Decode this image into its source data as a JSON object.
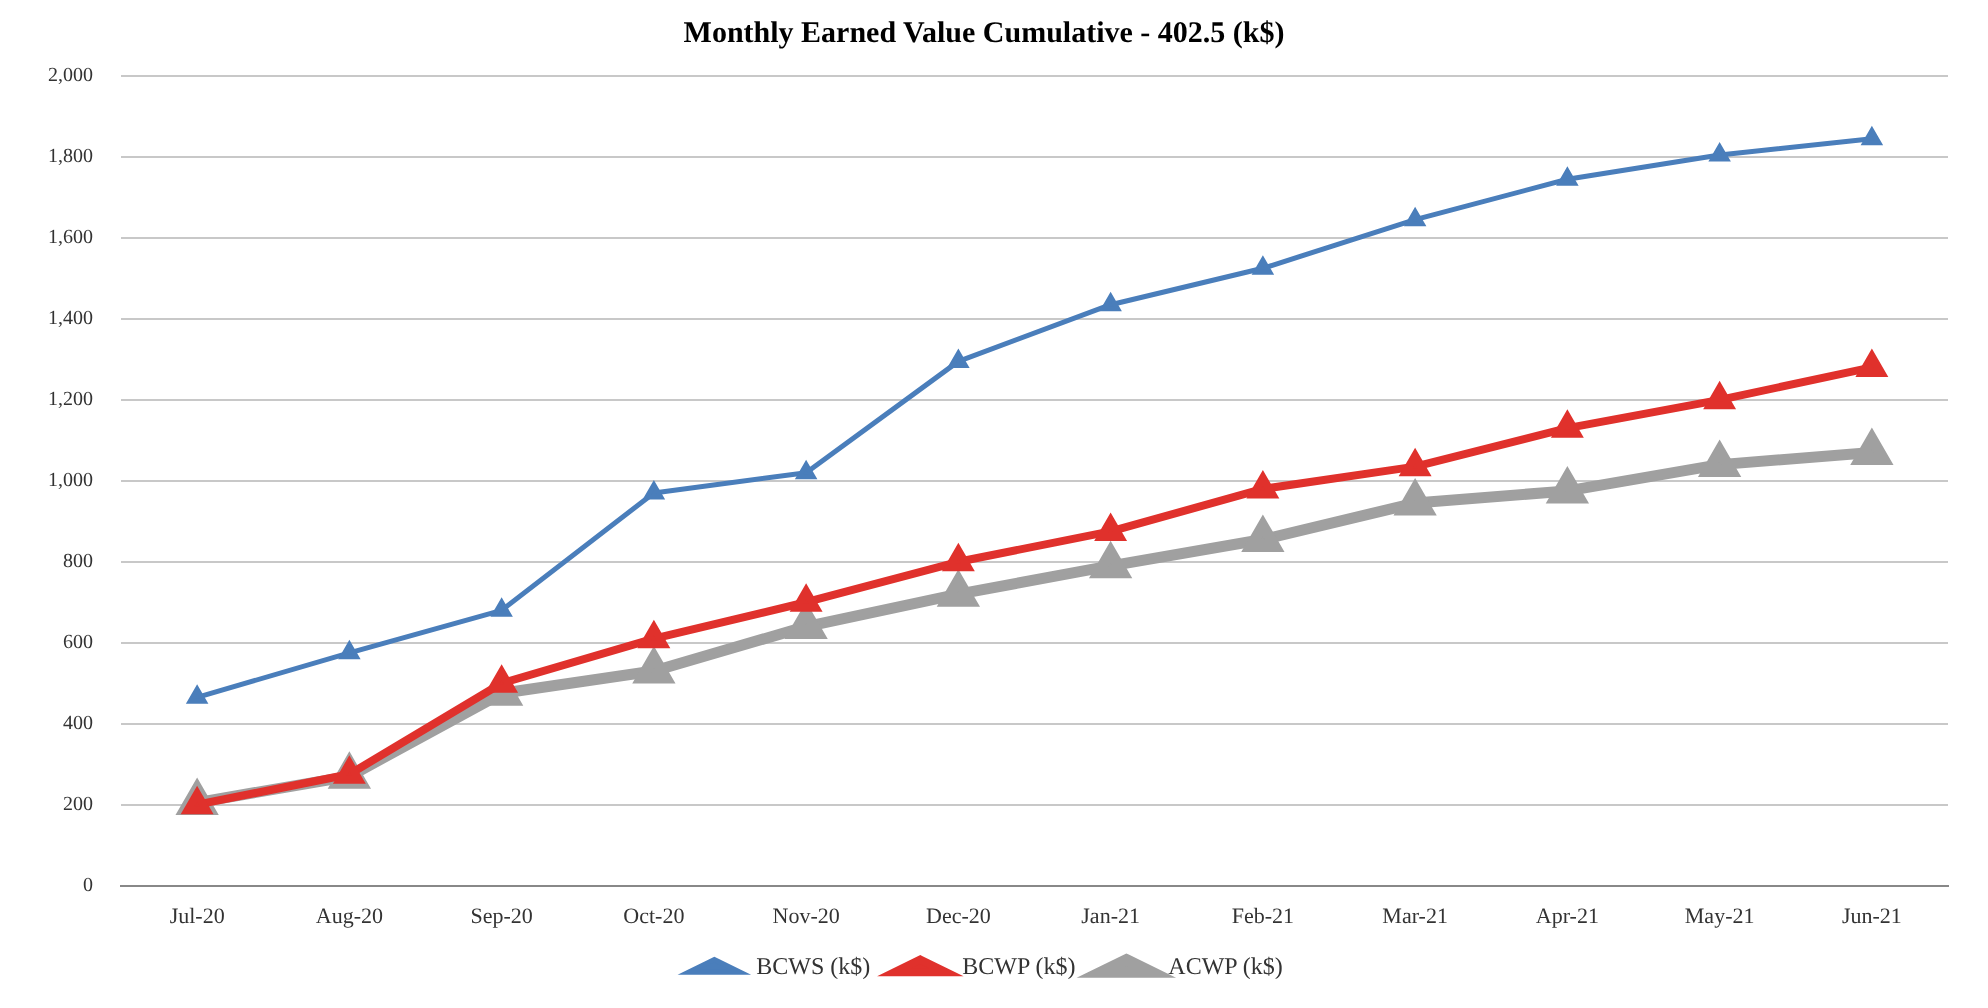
{
  "chart_data": {
    "type": "line",
    "title": "Monthly Earned Value Cumulative - 402.5 (k$)",
    "categories": [
      "Jul-20",
      "Aug-20",
      "Sep-20",
      "Oct-20",
      "Nov-20",
      "Dec-20",
      "Jan-21",
      "Feb-21",
      "Mar-21",
      "Apr-21",
      "May-21",
      "Jun-21"
    ],
    "series": [
      {
        "name": "BCWS (k$)",
        "color": "#4a7ebb",
        "values": [
          465,
          575,
          680,
          970,
          1020,
          1295,
          1435,
          1525,
          1645,
          1745,
          1805,
          1845
        ]
      },
      {
        "name": "BCWP (k$)",
        "color": "#e0312c",
        "values": [
          200,
          275,
          500,
          610,
          700,
          800,
          875,
          980,
          1035,
          1130,
          1200,
          1280
        ]
      },
      {
        "name": "ACWP (k$)",
        "color": "#a0a0a0",
        "values": [
          205,
          270,
          475,
          530,
          640,
          720,
          790,
          855,
          945,
          975,
          1040,
          1070
        ]
      }
    ],
    "ylim": [
      0,
      2000
    ],
    "yticks": [
      0,
      {
        "value": 200,
        "label": "200"
      },
      {
        "value": 400,
        "label": "400"
      },
      {
        "value": 600,
        "label": "600"
      },
      {
        "value": 800,
        "label": "800"
      },
      {
        "value": 1000,
        "label": "1,000"
      },
      {
        "value": 1200,
        "label": "1,200"
      },
      {
        "value": 1400,
        "label": "1,400"
      },
      {
        "value": 1600,
        "label": "1,600"
      },
      {
        "value": 1800,
        "label": "1,800"
      },
      {
        "value": 2000,
        "label": "2,000"
      }
    ],
    "grid": "y",
    "legend": "bottom",
    "marker": "triangle",
    "line_style": "solid"
  }
}
